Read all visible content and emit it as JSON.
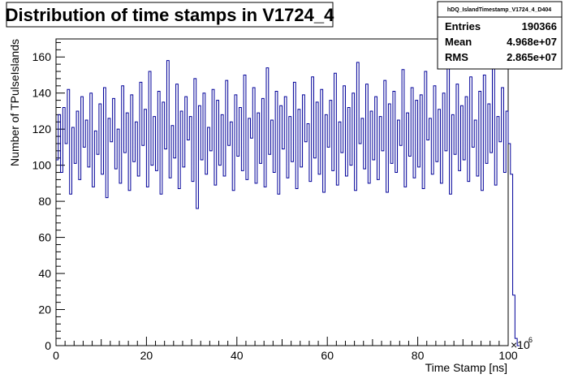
{
  "chart_data": {
    "type": "line",
    "title": "Distribution of time stamps in V1724_4",
    "xlabel": "Time Stamp [ns]",
    "ylabel": "Number of TPulseIslands",
    "x_exponent_label": "×10",
    "x_exponent_power": "6",
    "xlim": [
      0,
      100
    ],
    "ylim": [
      0,
      170
    ],
    "x_ticks": [
      "0",
      "20",
      "40",
      "60",
      "80",
      "100"
    ],
    "y_ticks": [
      "0",
      "20",
      "40",
      "60",
      "80",
      "100",
      "120",
      "140",
      "160"
    ],
    "grid": false,
    "series_color": "#000099",
    "series": [
      {
        "x_bin_width": 0.5,
        "values": [
          103,
          128,
          96,
          132,
          112,
          142,
          84,
          121,
          101,
          130,
          92,
          138,
          110,
          125,
          99,
          140,
          88,
          119,
          106,
          134,
          95,
          143,
          82,
          126,
          113,
          137,
          98,
          120,
          90,
          144,
          107,
          129,
          86,
          139,
          102,
          124,
          94,
          146,
          111,
          131,
          88,
          152,
          100,
          127,
          97,
          141,
          84,
          135,
          109,
          158,
          93,
          122,
          104,
          145,
          87,
          130,
          99,
          138,
          114,
          127,
          91,
          148,
          76,
          133,
          103,
          140,
          95,
          121,
          108,
          142,
          89,
          136,
          100,
          128,
          94,
          147,
          111,
          124,
          86,
          139,
          105,
          132,
          97,
          150,
          92,
          126,
          115,
          143,
          90,
          129,
          101,
          137,
          88,
          154,
          106,
          125,
          96,
          141,
          84,
          133,
          109,
          138,
          93,
          127,
          102,
          146,
          87,
          131,
          99,
          139,
          113,
          123,
          91,
          149,
          104,
          135,
          95,
          142,
          85,
          128,
          110,
          136,
          97,
          151,
          89,
          124,
          107,
          144,
          94,
          132,
          100,
          140,
          86,
          157,
          112,
          126,
          98,
          145,
          90,
          130,
          103,
          138,
          92,
          127,
          108,
          147,
          85,
          134,
          101,
          141,
          96,
          125,
          111,
          153,
          88,
          129,
          105,
          143,
          93,
          136,
          99,
          139,
          87,
          152,
          114,
          126,
          95,
          144,
          102,
          131,
          90,
          140,
          108,
          157,
          84,
          128,
          106,
          145,
          97,
          133,
          103,
          138,
          91,
          149,
          110,
          125,
          94,
          141,
          86,
          150,
          101,
          134,
          107,
          160,
          89,
          127,
          113,
          143,
          96,
          130,
          112,
          95,
          28,
          4,
          0
        ]
      }
    ]
  },
  "stats_box": {
    "name": "hDQ_IslandTimestamp_V1724_4_D404",
    "rows": [
      {
        "label": "Entries",
        "value": "190366"
      },
      {
        "label": "Mean",
        "value": "4.968e+07"
      },
      {
        "label": "RMS",
        "value": "2.865e+07"
      }
    ]
  }
}
